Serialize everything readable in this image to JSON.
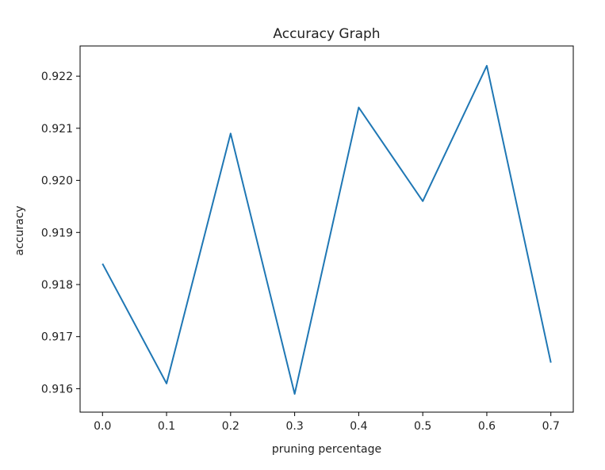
{
  "chart_data": {
    "type": "line",
    "title": "Accuracy Graph",
    "xlabel": "pruning percentage",
    "ylabel": "accuracy",
    "x": [
      0.0,
      0.1,
      0.2,
      0.3,
      0.4,
      0.5,
      0.6,
      0.7
    ],
    "series": [
      {
        "values": [
          0.9184,
          0.9161,
          0.9209,
          0.9159,
          0.9214,
          0.9196,
          0.9222,
          0.9165
        ],
        "color": "#1f77b4"
      }
    ],
    "xlim": [
      -0.035,
      0.735
    ],
    "ylim": [
      0.91555,
      0.92258
    ],
    "xticks": [
      0.0,
      0.1,
      0.2,
      0.3,
      0.4,
      0.5,
      0.6,
      0.7
    ],
    "xtick_labels": [
      "0.0",
      "0.1",
      "0.2",
      "0.3",
      "0.4",
      "0.5",
      "0.6",
      "0.7"
    ],
    "yticks": [
      0.916,
      0.917,
      0.918,
      0.919,
      0.92,
      0.921,
      0.922
    ],
    "ytick_labels": [
      "0.916",
      "0.917",
      "0.918",
      "0.919",
      "0.920",
      "0.921",
      "0.922"
    ],
    "grid": false,
    "legend": "none"
  }
}
